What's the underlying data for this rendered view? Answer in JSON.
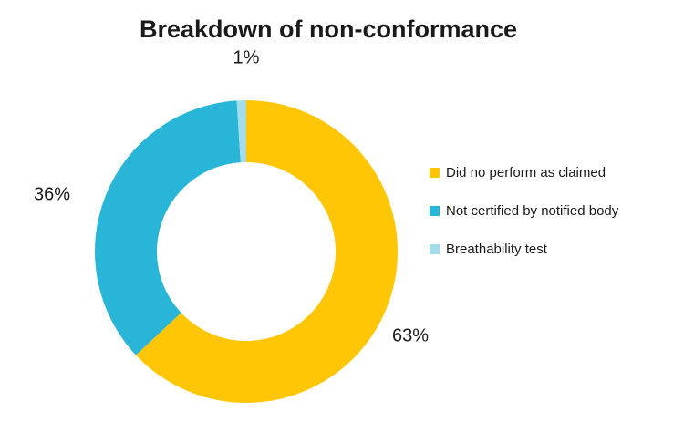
{
  "title": "Breakdown of non-conformance",
  "colors": {
    "background": "#FFFFFF",
    "text": "#1A1A1A"
  },
  "chart_data": {
    "type": "pie",
    "subtype": "donut",
    "title": "Breakdown of non-conformance",
    "legend_position": "right",
    "donut_hole_ratio": 0.59,
    "start_angle_deg": 0,
    "direction": "clockwise",
    "series": [
      {
        "name": "Did no perform as claimed",
        "value": 63,
        "label": "63%",
        "color": "#FFC605"
      },
      {
        "name": "Not certified by notified body",
        "value": 36,
        "label": "36%",
        "color": "#29B5D8"
      },
      {
        "name": "Breathability test",
        "value": 1,
        "label": "1%",
        "color": "#A3DDEB"
      }
    ]
  }
}
